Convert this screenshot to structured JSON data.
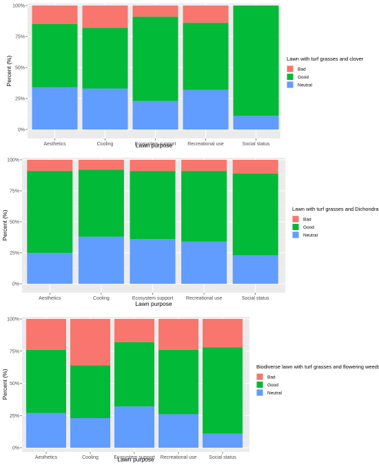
{
  "chart_data": [
    {
      "type": "bar",
      "stacked": true,
      "categories": [
        "Aesthetics",
        "Cooling",
        "Ecosystem support",
        "Recreational use",
        "Social status"
      ],
      "series": [
        {
          "name": "Bad",
          "values": [
            15,
            18,
            9,
            14,
            0
          ]
        },
        {
          "name": "Good",
          "values": [
            51,
            49,
            68,
            54,
            89
          ]
        },
        {
          "name": "Neutral",
          "values": [
            34,
            33,
            23,
            32,
            11
          ]
        }
      ],
      "colors": {
        "Bad": "#F8766D",
        "Good": "#00BA38",
        "Neutral": "#619CFF"
      },
      "xlabel": "Lawn purpose",
      "ylabel": "Percent (%)",
      "yticks": [
        "0%",
        "25%",
        "50%",
        "75%",
        "100%"
      ],
      "ylim": [
        0,
        100
      ],
      "legend_title": "Lawn with turf grasses and clover",
      "legend_position": "right",
      "grid": true
    },
    {
      "type": "bar",
      "stacked": true,
      "categories": [
        "Aesthetics",
        "Cooling",
        "Ecosystem support",
        "Recreational use",
        "Social status"
      ],
      "series": [
        {
          "name": "Bad",
          "values": [
            9,
            8,
            9,
            9,
            11
          ]
        },
        {
          "name": "Good",
          "values": [
            66,
            54,
            55,
            57,
            66
          ]
        },
        {
          "name": "Neutral",
          "values": [
            25,
            38,
            36,
            34,
            23
          ]
        }
      ],
      "colors": {
        "Bad": "#F8766D",
        "Good": "#00BA38",
        "Neutral": "#619CFF"
      },
      "xlabel": "Lawn purpose",
      "ylabel": "Percent (%)",
      "yticks": [
        "0%",
        "25%",
        "50%",
        "75%",
        "100%"
      ],
      "ylim": [
        0,
        100
      ],
      "legend_title": "Lawn with turf grasses and Dichondra",
      "legend_position": "right",
      "grid": true
    },
    {
      "type": "bar",
      "stacked": true,
      "categories": [
        "Aesthetics",
        "Cooling",
        "Ecosystem support",
        "Recreational use",
        "Social status"
      ],
      "series": [
        {
          "name": "Bad",
          "values": [
            24,
            36,
            18,
            24,
            22
          ]
        },
        {
          "name": "Good",
          "values": [
            49,
            41,
            50,
            50,
            67
          ]
        },
        {
          "name": "Neutral",
          "values": [
            27,
            23,
            32,
            26,
            11
          ]
        }
      ],
      "colors": {
        "Bad": "#F8766D",
        "Good": "#00BA38",
        "Neutral": "#619CFF"
      },
      "xlabel": "Lawn purpose",
      "ylabel": "Percent (%)",
      "yticks": [
        "0%",
        "25%",
        "50%",
        "75%",
        "100%"
      ],
      "ylim": [
        0,
        100
      ],
      "legend_title": "Biodiverse lawn with turf grasses and flowering weeds",
      "legend_position": "right",
      "grid": true
    }
  ]
}
